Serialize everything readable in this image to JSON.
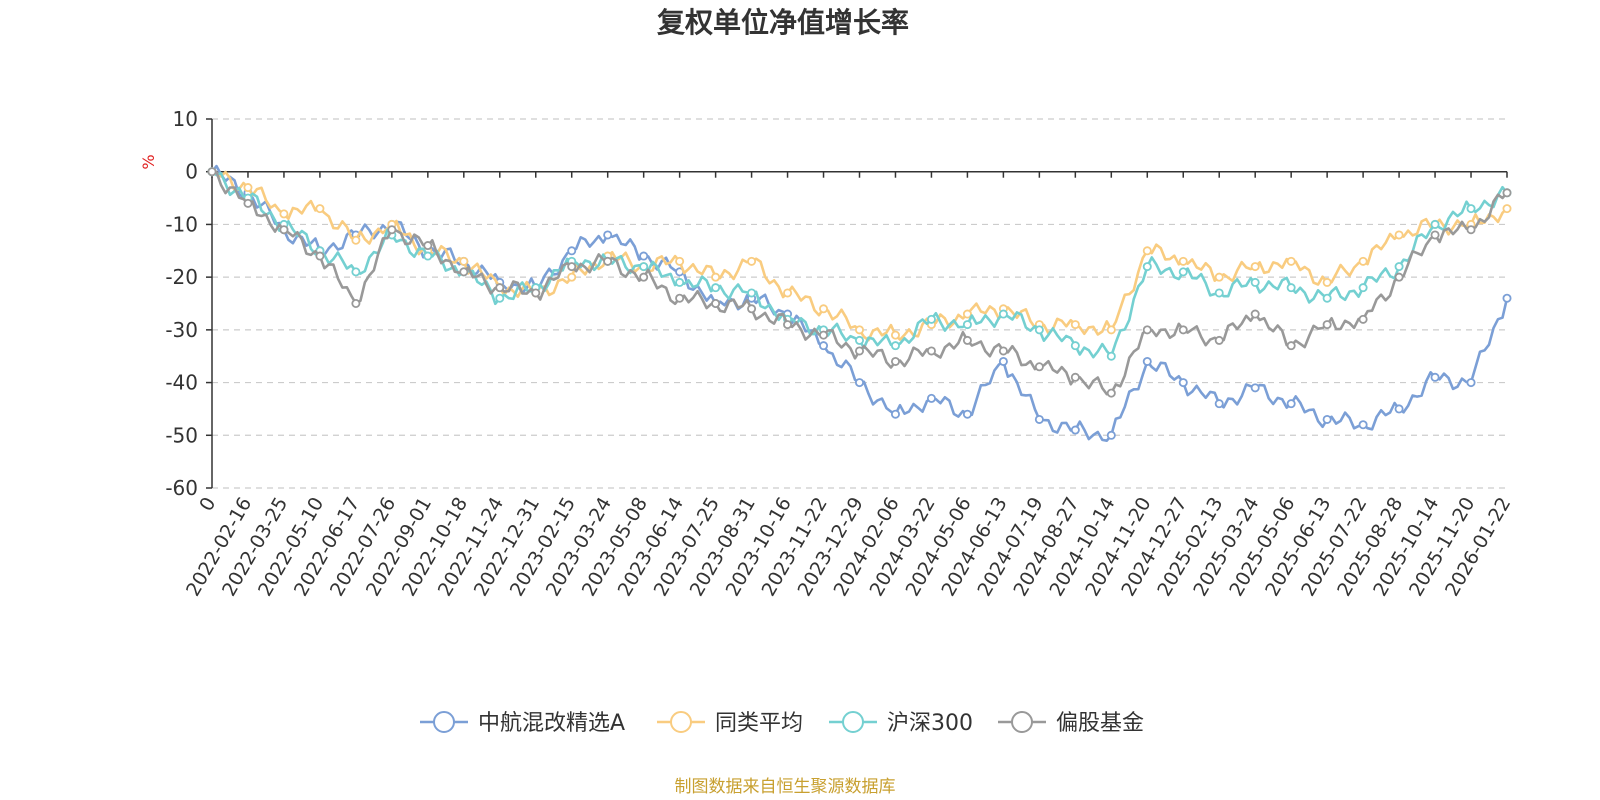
{
  "chart_data": {
    "type": "line",
    "title": "复权单位净值增长率",
    "ylabel": "%",
    "xlabel": "",
    "ylim": [
      -60,
      10
    ],
    "yticks": [
      10,
      0,
      -10,
      -20,
      -30,
      -40,
      -50,
      -60
    ],
    "grid": true,
    "legend_position": "bottom",
    "source_note": "制图数据来自恒生聚源数据库",
    "x": [
      "0",
      "2022-02-16",
      "2022-03-25",
      "2022-05-10",
      "2022-06-17",
      "2022-07-26",
      "2022-09-01",
      "2022-10-18",
      "2022-11-24",
      "2022-12-31",
      "2023-02-15",
      "2023-03-24",
      "2023-05-08",
      "2023-06-14",
      "2023-07-25",
      "2023-08-31",
      "2023-10-16",
      "2023-11-22",
      "2023-12-29",
      "2024-02-06",
      "2024-03-22",
      "2024-05-06",
      "2024-06-13",
      "2024-07-19",
      "2024-08-27",
      "2024-10-14",
      "2024-11-20",
      "2024-12-27",
      "2025-02-13",
      "2025-03-24",
      "2025-05-06",
      "2025-06-13",
      "2025-07-22",
      "2025-08-28",
      "2025-10-14",
      "2025-11-20",
      "2026-01-22"
    ],
    "series": [
      {
        "name": "中航混改精选A",
        "color": "#7b9fd6",
        "values": [
          0,
          -4,
          -11,
          -15,
          -12,
          -10,
          -15,
          -17,
          -21,
          -22,
          -15,
          -12,
          -16,
          -19,
          -25,
          -24,
          -27,
          -33,
          -40,
          -46,
          -43,
          -46,
          -36,
          -47,
          -49,
          -50,
          -36,
          -40,
          -44,
          -41,
          -44,
          -47,
          -48,
          -45,
          -39,
          -40,
          -24
        ]
      },
      {
        "name": "同类平均",
        "color": "#f9cc80",
        "values": [
          0,
          -3,
          -8,
          -7,
          -13,
          -10,
          -15,
          -17,
          -22,
          -23,
          -20,
          -16,
          -18,
          -17,
          -20,
          -17,
          -23,
          -26,
          -30,
          -31,
          -29,
          -27,
          -26,
          -29,
          -29,
          -30,
          -15,
          -17,
          -20,
          -18,
          -17,
          -21,
          -17,
          -12,
          -10,
          -10,
          -7
        ]
      },
      {
        "name": "沪深300",
        "color": "#74d0d1",
        "values": [
          0,
          -5,
          -10,
          -15,
          -19,
          -12,
          -16,
          -19,
          -24,
          -22,
          -17,
          -17,
          -18,
          -21,
          -22,
          -23,
          -28,
          -30,
          -32,
          -33,
          -28,
          -29,
          -27,
          -30,
          -33,
          -35,
          -18,
          -19,
          -23,
          -21,
          -22,
          -24,
          -22,
          -18,
          -10,
          -7,
          -4
        ]
      },
      {
        "name": "偏股基金",
        "color": "#999999",
        "values": [
          0,
          -6,
          -11,
          -16,
          -25,
          -11,
          -14,
          -19,
          -22,
          -23,
          -18,
          -17,
          -20,
          -24,
          -25,
          -26,
          -29,
          -31,
          -34,
          -36,
          -34,
          -32,
          -34,
          -37,
          -39,
          -42,
          -30,
          -30,
          -32,
          -27,
          -33,
          -29,
          -28,
          -20,
          -12,
          -11,
          -4
        ]
      }
    ]
  }
}
